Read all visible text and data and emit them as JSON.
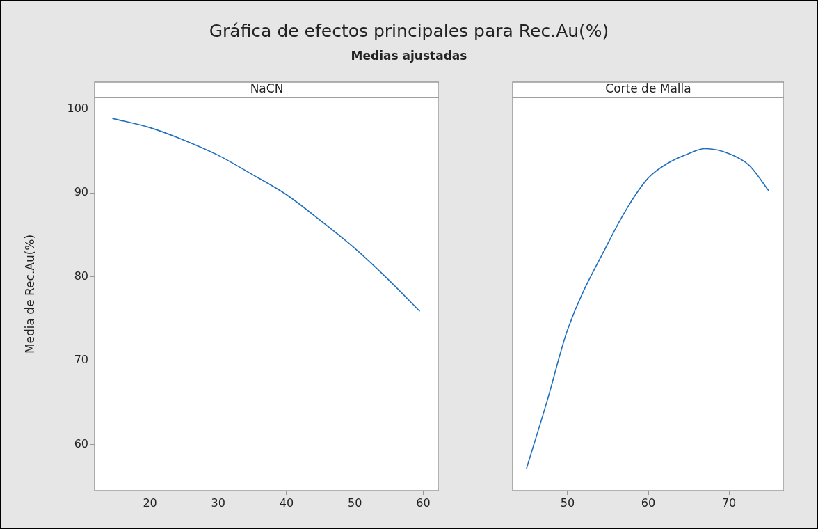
{
  "chart_data": [
    {
      "type": "line",
      "title": "Gráfica de efectos principales para Rec.Au(%)",
      "subtitle": "Medias ajustadas",
      "xlabel": "NaCN",
      "ylabel": "Media de Rec.Au(%)",
      "color": "#1f6fbf",
      "x": [
        14.5,
        20,
        25,
        30,
        35,
        40,
        45,
        50,
        55,
        59.5
      ],
      "values": [
        98.9,
        97.8,
        96.3,
        94.5,
        92.2,
        89.8,
        86.7,
        83.4,
        79.6,
        75.9
      ],
      "xlim": [
        11.9,
        62.3
      ],
      "xticks": [
        20,
        30,
        40,
        50,
        60
      ],
      "ylim": [
        54.5,
        101.4
      ],
      "yticks": [
        60,
        70,
        80,
        90,
        100
      ]
    },
    {
      "type": "line",
      "xlabel": "Corte de Malla",
      "color": "#1f6fbf",
      "x": [
        44.9,
        47.5,
        50,
        55,
        57.5,
        60,
        62.5,
        65,
        67,
        70,
        72.5,
        74.9
      ],
      "values": [
        57.1,
        65.3,
        73.7,
        84.0,
        88.4,
        91.8,
        93.6,
        94.7,
        95.3,
        94.7,
        93.3,
        90.3
      ],
      "xlim": [
        43.2,
        76.8
      ],
      "xticks": [
        50,
        60,
        70
      ],
      "ylim": [
        54.5,
        101.4
      ],
      "yticks": [
        60,
        70,
        80,
        90,
        100
      ],
      "tick_labels": "x"
    }
  ]
}
